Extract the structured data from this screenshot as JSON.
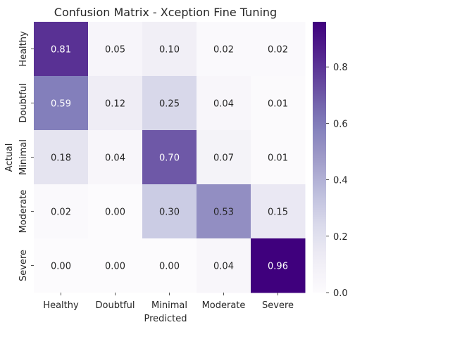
{
  "chart_data": {
    "type": "heatmap",
    "title": "Confusion Matrix - Xception Fine Tuning",
    "xlabel": "Predicted",
    "ylabel": "Actual",
    "x_categories": [
      "Healthy",
      "Doubtful",
      "Minimal",
      "Moderate",
      "Severe"
    ],
    "y_categories": [
      "Healthy",
      "Doubtful",
      "Minimal",
      "Moderate",
      "Severe"
    ],
    "values": [
      [
        0.81,
        0.05,
        0.1,
        0.02,
        0.02
      ],
      [
        0.59,
        0.12,
        0.25,
        0.04,
        0.01
      ],
      [
        0.18,
        0.04,
        0.7,
        0.07,
        0.01
      ],
      [
        0.02,
        0.0,
        0.3,
        0.53,
        0.15
      ],
      [
        0.0,
        0.0,
        0.0,
        0.04,
        0.96
      ]
    ],
    "colorbar": {
      "range": [
        0.0,
        0.96
      ],
      "ticks": [
        0.0,
        0.2,
        0.4,
        0.6,
        0.8
      ],
      "tick_labels": [
        "0.0",
        "0.2",
        "0.4",
        "0.6",
        "0.8"
      ],
      "colormap": "Purples"
    }
  }
}
